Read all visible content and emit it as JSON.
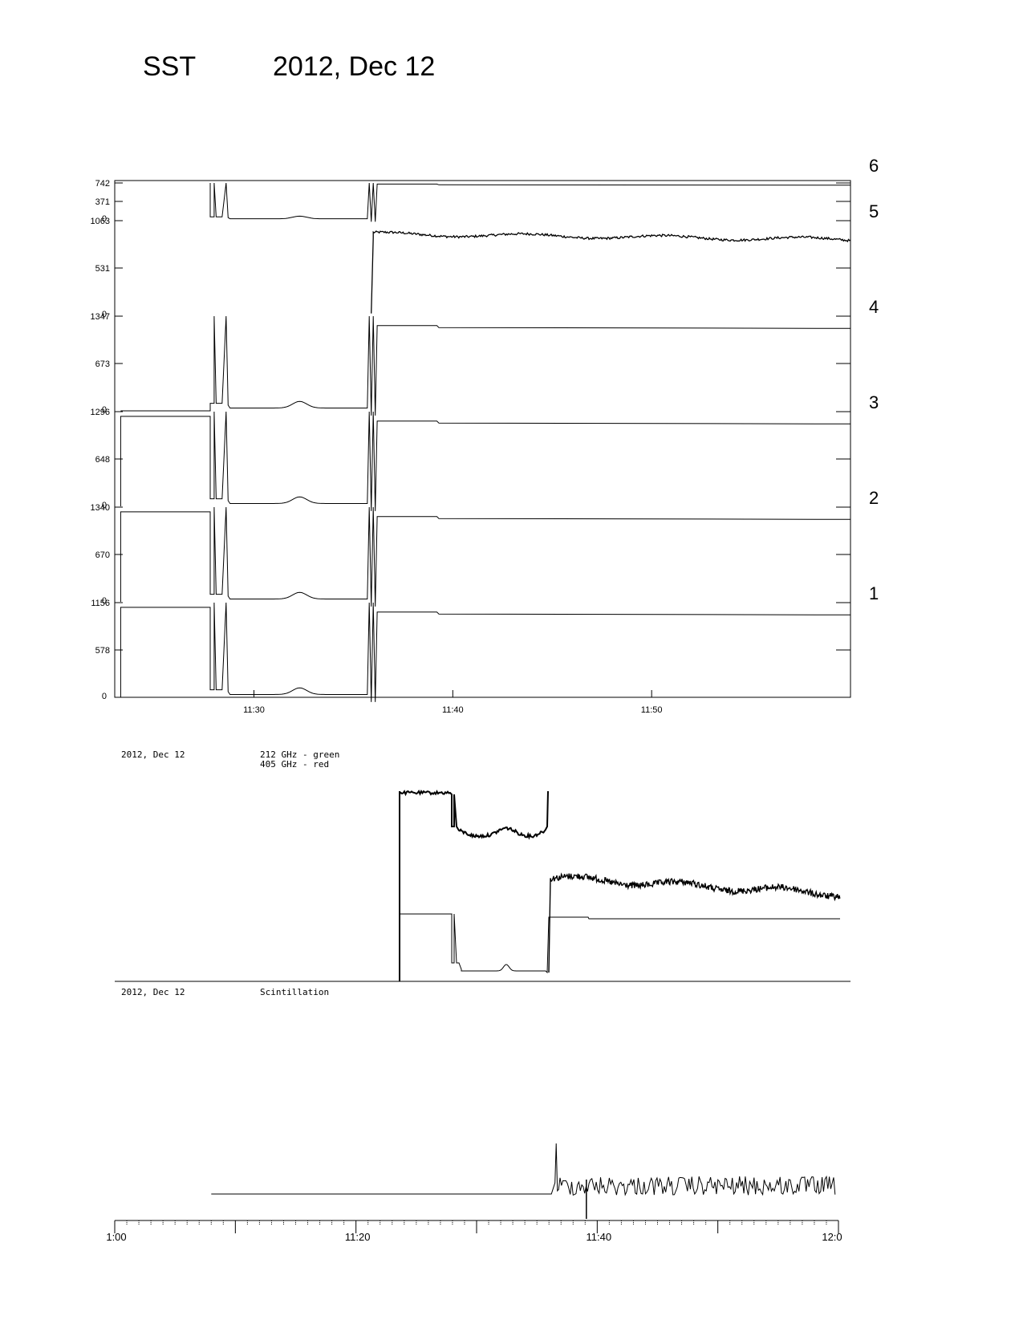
{
  "header": {
    "instrument": "SST",
    "date": "2012, Dec 12"
  },
  "chart_data": [
    {
      "type": "line",
      "x_ticks": [
        "11:30",
        "11:40",
        "11:50"
      ],
      "x_range": [
        "11:23",
        "11:60"
      ],
      "channels": [
        {
          "name": "6",
          "yticks": [
            "742",
            "371",
            "0"
          ],
          "ylim": [
            0,
            742
          ]
        },
        {
          "name": "5",
          "yticks": [
            "1063",
            "531",
            "0"
          ],
          "ylim": [
            0,
            1063
          ]
        },
        {
          "name": "4",
          "yticks": [
            "1347",
            "673",
            "0"
          ],
          "ylim": [
            0,
            1347
          ]
        },
        {
          "name": "3",
          "yticks": [
            "1296",
            "648",
            "0"
          ],
          "ylim": [
            0,
            1296
          ]
        },
        {
          "name": "2",
          "yticks": [
            "1340",
            "670",
            "0"
          ],
          "ylim": [
            0,
            1340
          ]
        },
        {
          "name": "1",
          "yticks": [
            "1156",
            "578",
            "0"
          ],
          "ylim": [
            0,
            1156
          ]
        }
      ]
    },
    {
      "type": "line",
      "date": "2012, Dec 12",
      "legend": [
        "212 GHz - green",
        "405 GHz - red"
      ]
    },
    {
      "type": "line",
      "date": "2012, Dec 12",
      "title": "Scintillation",
      "x_ticks": [
        "1:00",
        "11:20",
        "11:40",
        "12:0"
      ]
    }
  ]
}
